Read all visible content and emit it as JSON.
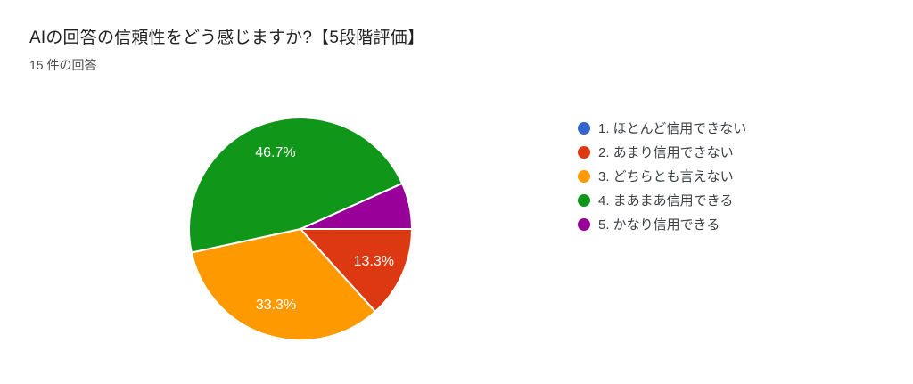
{
  "chart": {
    "title": "AIの回答の信頼性をどう感じますか?【5段階評価】",
    "subtitle": "15 件の回答"
  },
  "chart_data": {
    "type": "pie",
    "title": "AIの回答の信頼性をどう感じますか?【5段階評価】",
    "subtitle": "15 件の回答",
    "total_responses_text": "15 件の回答",
    "legend_position": "right",
    "start_angle_deg": 0,
    "direction": "clockwise",
    "categories": [
      "1. ほとんど信用できない",
      "2. あまり信用できない",
      "3. どちらとも言えない",
      "4. まあまあ信用できる",
      "5. かなり信用できる"
    ],
    "values_pct": [
      0,
      13.3,
      33.3,
      46.7,
      6.7
    ],
    "colors": [
      "#3366CC",
      "#DC3912",
      "#FF9900",
      "#109618",
      "#990099"
    ],
    "slice_labels": [
      "",
      "13.3%",
      "33.3%",
      "46.7%",
      ""
    ],
    "slice_stroke_color": "#ffffff",
    "label_color": "#ffffff"
  },
  "legend": {
    "items": [
      {
        "label": "1. ほとんど信用できない",
        "color": "#3366CC"
      },
      {
        "label": "2. あまり信用できない",
        "color": "#DC3912"
      },
      {
        "label": "3. どちらとも言えない",
        "color": "#FF9900"
      },
      {
        "label": "4. まあまあ信用できる",
        "color": "#109618"
      },
      {
        "label": "5. かなり信用できる",
        "color": "#990099"
      }
    ]
  }
}
